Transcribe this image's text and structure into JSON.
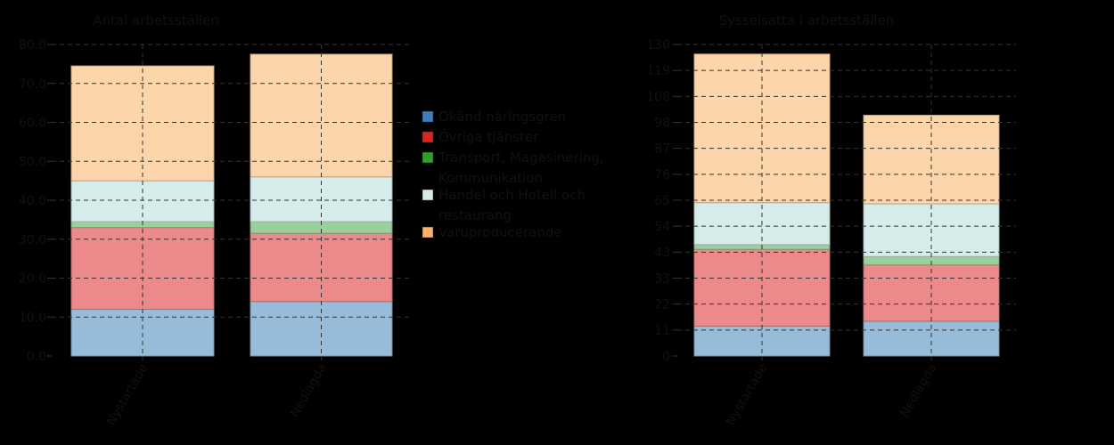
{
  "chart_data": [
    {
      "type": "bar",
      "stacked": true,
      "title": "Antal arbetsställen",
      "xlabel": "",
      "ylabel": "",
      "categories": [
        "Nystartade",
        "Nedlagda"
      ],
      "ylim": [
        0,
        80
      ],
      "yticks": [
        "0.0",
        "10.0",
        "20.0",
        "30.0",
        "40.0",
        "50.0",
        "60.0",
        "70.0",
        "80.0"
      ],
      "grid": true,
      "series": [
        {
          "name": "Okänd näringsgren",
          "color": "#96bcd9",
          "values": [
            12,
            14
          ]
        },
        {
          "name": "Övriga tjänster",
          "color": "#ec8a8b",
          "values": [
            21,
            17.5
          ]
        },
        {
          "name": "Transport, Magasinering, Kommunikation",
          "color": "#9bcf9b",
          "values": [
            1.5,
            3
          ]
        },
        {
          "name": "Handel och Hotell och restaurang",
          "color": "#d5ecea",
          "values": [
            10.5,
            11.5
          ]
        },
        {
          "name": "Varuproducerande",
          "color": "#fdd5ab",
          "values": [
            29.5,
            31.5
          ]
        }
      ]
    },
    {
      "type": "bar",
      "stacked": true,
      "title": "Sysselsatta i arbetsställen",
      "xlabel": "",
      "ylabel": "",
      "categories": [
        "Nystartade",
        "Nedlagda"
      ],
      "ylim": [
        0,
        130
      ],
      "yticks": [
        "0",
        "11",
        "22",
        "33",
        "43",
        "54",
        "65",
        "76",
        "87",
        "98",
        "108",
        "119",
        "130"
      ],
      "grid": true,
      "series": [
        {
          "name": "Okänd näringsgren",
          "color": "#96bcd9",
          "values": [
            12.5,
            14.5
          ]
        },
        {
          "name": "Övriga tjänster",
          "color": "#ec8a8b",
          "values": [
            32,
            23.5
          ]
        },
        {
          "name": "Transport, Magasinering, Kommunikation",
          "color": "#9bcf9b",
          "values": [
            2,
            3.5
          ]
        },
        {
          "name": "Handel och Hotell och restaurang",
          "color": "#d5ecea",
          "values": [
            17.5,
            22
          ]
        },
        {
          "name": "Varuproducerande",
          "color": "#fdd5ab",
          "values": [
            62,
            37
          ]
        }
      ]
    }
  ],
  "legend": {
    "position": "between-charts",
    "items": [
      {
        "lines": [
          "Okänd näringsgren"
        ],
        "color": "#3f7fbf"
      },
      {
        "lines": [
          "Övriga tjänster"
        ],
        "color": "#d62728"
      },
      {
        "lines": [
          "Transport, Magasinering,",
          "Kommunikation"
        ],
        "color": "#2ca02c"
      },
      {
        "lines": [
          "Handel och Hotell och",
          "restaurang"
        ],
        "color": "#d5ecea"
      },
      {
        "lines": [
          "Varuproducerande"
        ],
        "color": "#ffb06b"
      }
    ]
  }
}
